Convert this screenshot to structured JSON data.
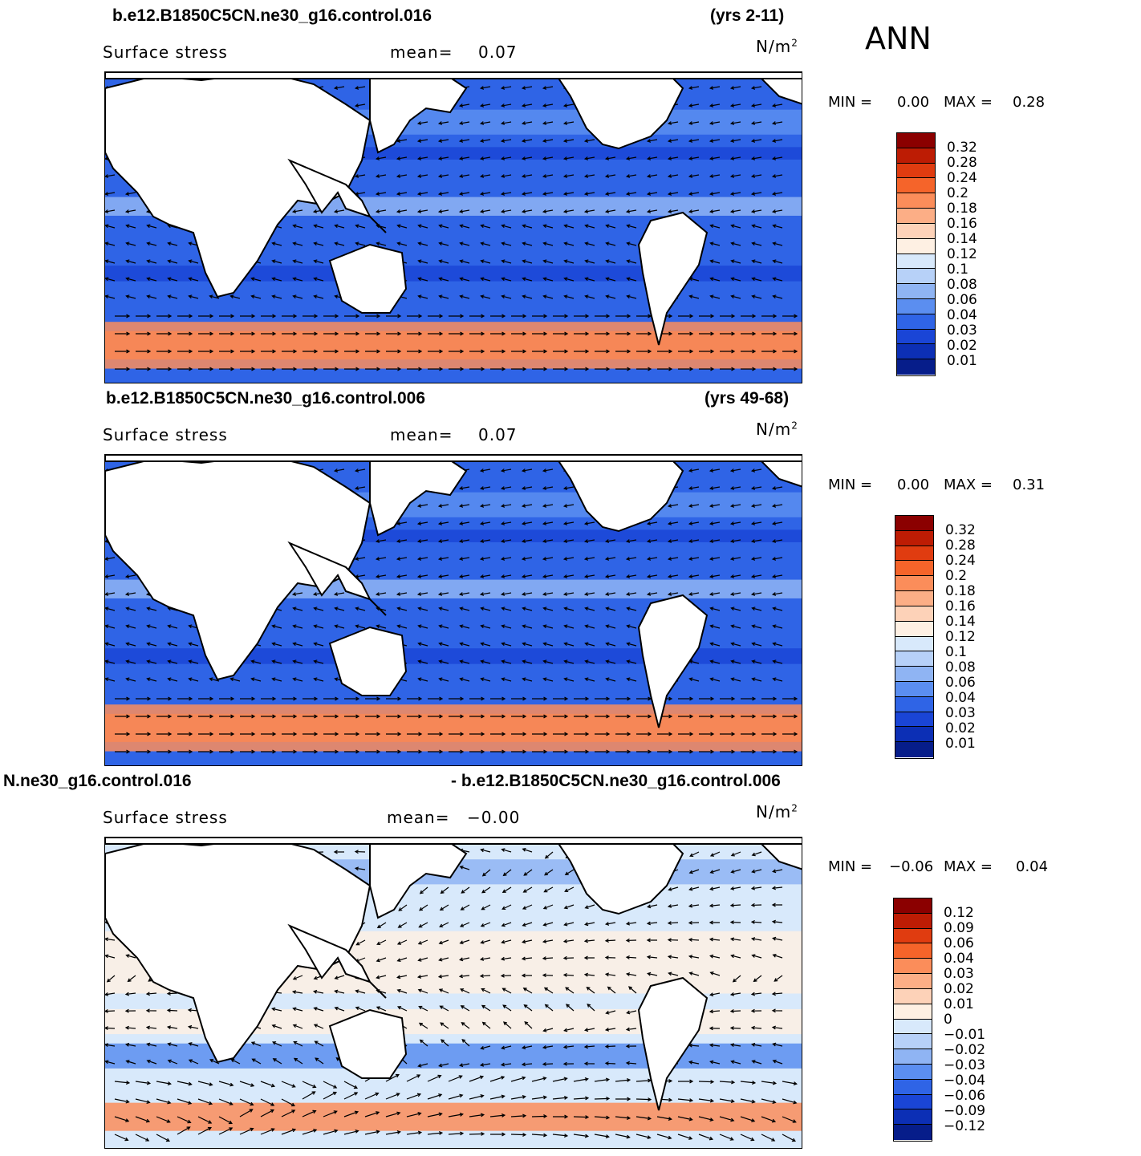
{
  "season": "ANN",
  "panels": [
    {
      "case_left": "b.e12.B1850C5CN.ne30_g16.control.016",
      "case_right": "(yrs 2-11)",
      "variable": "Surface stress",
      "mean_label": "mean=",
      "mean_value": "0.07",
      "units": "N/m",
      "units_sup": "2",
      "min_label": "MIN =",
      "min_value": "0.00",
      "max_label": "MAX =",
      "max_value": "0.28",
      "field": "absolute",
      "colorbar_ticks": [
        "0.32",
        "0.28",
        "0.24",
        "0.2",
        "0.18",
        "0.16",
        "0.14",
        "0.12",
        "0.1",
        "0.08",
        "0.06",
        "0.04",
        "0.03",
        "0.02",
        "0.01"
      ],
      "colorbar_colors": [
        "#8b0000",
        "#bd1c04",
        "#e03c10",
        "#f5642a",
        "#fb8d5a",
        "#fcae86",
        "#fdd2b8",
        "#fef0e3",
        "#d8e9fb",
        "#b7d1f8",
        "#8fb4f3",
        "#5b8ef0",
        "#2f64e6",
        "#1a45d6",
        "#0c2fb5",
        "#061d8a"
      ]
    },
    {
      "case_left": "b.e12.B1850C5CN.ne30_g16.control.006",
      "case_right": "(yrs 49-68)",
      "variable": "Surface stress",
      "mean_label": "mean=",
      "mean_value": "0.07",
      "units": "N/m",
      "units_sup": "2",
      "min_label": "MIN =",
      "min_value": "0.00",
      "max_label": "MAX =",
      "max_value": "0.31",
      "field": "absolute",
      "colorbar_ticks": [
        "0.32",
        "0.28",
        "0.24",
        "0.2",
        "0.18",
        "0.16",
        "0.14",
        "0.12",
        "0.1",
        "0.08",
        "0.06",
        "0.04",
        "0.03",
        "0.02",
        "0.01"
      ],
      "colorbar_colors": [
        "#8b0000",
        "#bd1c04",
        "#e03c10",
        "#f5642a",
        "#fb8d5a",
        "#fcae86",
        "#fdd2b8",
        "#fef0e3",
        "#d8e9fb",
        "#b7d1f8",
        "#8fb4f3",
        "#5b8ef0",
        "#2f64e6",
        "#1a45d6",
        "#0c2fb5",
        "#061d8a"
      ]
    },
    {
      "case_left": "N.ne30_g16.control.016",
      "case_right": "- b.e12.B1850C5CN.ne30_g16.control.006",
      "variable": "Surface stress",
      "mean_label": "mean=",
      "mean_value": "−0.00",
      "units": "N/m",
      "units_sup": "2",
      "min_label": "MIN =",
      "min_value": "−0.06",
      "max_label": "MAX =",
      "max_value": "0.04",
      "field": "difference",
      "colorbar_ticks": [
        "0.12",
        "0.09",
        "0.06",
        "0.04",
        "0.03",
        "0.02",
        "0.01",
        "0",
        "−0.01",
        "−0.02",
        "−0.03",
        "−0.04",
        "−0.06",
        "−0.09",
        "−0.12"
      ],
      "colorbar_colors": [
        "#8b0000",
        "#bd1c04",
        "#e03c10",
        "#f5642a",
        "#fb8d5a",
        "#fcae86",
        "#fdd2b8",
        "#fef0e3",
        "#d8e9fb",
        "#b7d1f8",
        "#8fb4f3",
        "#5b8ef0",
        "#2f64e6",
        "#1a45d6",
        "#0c2fb5",
        "#061d8a"
      ]
    }
  ]
}
